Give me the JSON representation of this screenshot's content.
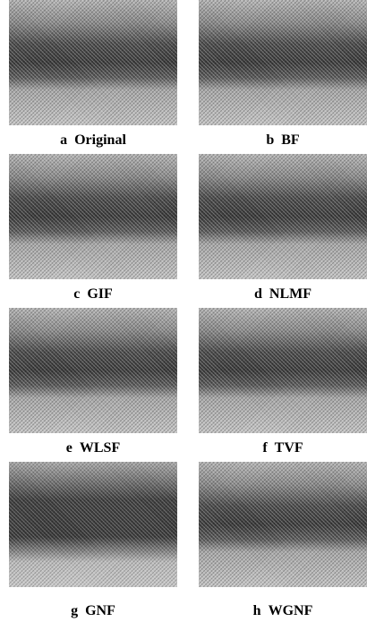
{
  "figure": {
    "panels": [
      {
        "letter": "a",
        "label": "Original"
      },
      {
        "letter": "b",
        "label": "BF"
      },
      {
        "letter": "c",
        "label": "GIF"
      },
      {
        "letter": "d",
        "label": "NLMF"
      },
      {
        "letter": "e",
        "label": "WLSF"
      },
      {
        "letter": "f",
        "label": "TVF"
      },
      {
        "letter": "g",
        "label": "GNF"
      },
      {
        "letter": "h",
        "label": "WGNF"
      }
    ]
  }
}
